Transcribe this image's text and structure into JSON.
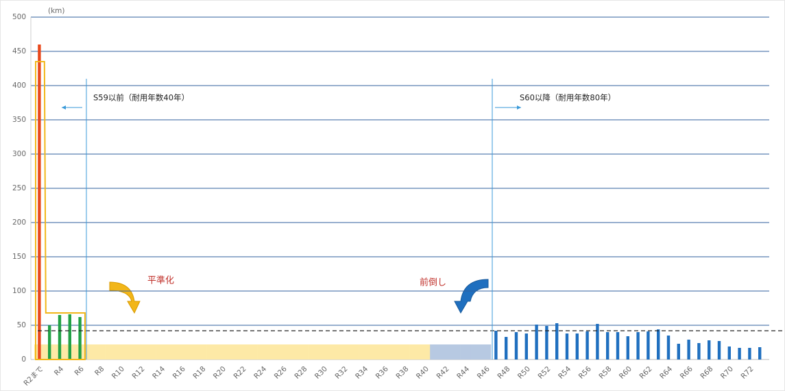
{
  "chart_data": {
    "type": "bar",
    "unit_label": "(km)",
    "categories": [
      "R2まで",
      null,
      "R4",
      null,
      "R6",
      null,
      "R8",
      null,
      "R10",
      null,
      "R12",
      null,
      "R14",
      null,
      "R16",
      null,
      "R18",
      null,
      "R20",
      null,
      "R22",
      null,
      "R24",
      null,
      "R26",
      null,
      "R28",
      null,
      "R30",
      null,
      "R32",
      null,
      "R34",
      null,
      "R36",
      null,
      "R38",
      null,
      "R40",
      null,
      "R42",
      null,
      "R44",
      null,
      "R46",
      null,
      "R48",
      null,
      "R50",
      null,
      "R52",
      null,
      "R54",
      null,
      "R56",
      null,
      "R58",
      null,
      "R60",
      null,
      "R62",
      null,
      "R64",
      null,
      "R66",
      null,
      "R68",
      null,
      "R70",
      null,
      "R72",
      null
    ],
    "series": [
      {
        "style": "band",
        "color": "#fde9a6",
        "values": [
          22,
          22,
          22,
          22,
          22,
          22,
          22,
          22,
          22,
          22,
          22,
          22,
          22,
          22,
          22,
          22,
          22,
          22,
          22,
          22,
          22,
          22,
          22,
          22,
          22,
          22,
          22,
          22,
          22,
          22,
          22,
          22,
          22,
          22,
          22,
          22,
          22,
          22,
          22,
          null,
          null,
          null,
          null,
          null,
          null,
          null,
          null,
          null,
          null,
          null,
          null,
          null,
          null,
          null,
          null,
          null,
          null,
          null,
          null,
          null,
          null,
          null,
          null,
          null,
          null,
          null,
          null,
          null,
          null,
          null,
          null,
          null
        ]
      },
      {
        "style": "band",
        "color": "#b7c9e2",
        "values": [
          null,
          null,
          null,
          null,
          null,
          null,
          null,
          null,
          null,
          null,
          null,
          null,
          null,
          null,
          null,
          null,
          null,
          null,
          null,
          null,
          null,
          null,
          null,
          null,
          null,
          null,
          null,
          null,
          null,
          null,
          null,
          null,
          null,
          null,
          null,
          null,
          null,
          null,
          null,
          22,
          22,
          22,
          22,
          22,
          22,
          null,
          null,
          null,
          null,
          null,
          null,
          null,
          null,
          null,
          null,
          null,
          null,
          null,
          null,
          null,
          null,
          null,
          null,
          null,
          null,
          null,
          null,
          null,
          null,
          null,
          null,
          null
        ]
      },
      {
        "style": "bar",
        "color": "#e8481c",
        "values": [
          460,
          null,
          null,
          null,
          null,
          null,
          null,
          null,
          null,
          null,
          null,
          null,
          null,
          null,
          null,
          null,
          null,
          null,
          null,
          null,
          null,
          null,
          null,
          null,
          null,
          null,
          null,
          null,
          null,
          null,
          null,
          null,
          null,
          null,
          null,
          null,
          null,
          null,
          null,
          null,
          null,
          null,
          null,
          null,
          null,
          null,
          null,
          null,
          null,
          null,
          null,
          null,
          null,
          null,
          null,
          null,
          null,
          null,
          null,
          null,
          null,
          null,
          null,
          null,
          null,
          null,
          null,
          null,
          null,
          null,
          null,
          null
        ]
      },
      {
        "style": "bar",
        "color": "#22a045",
        "values": [
          null,
          50,
          65,
          66,
          62,
          null,
          null,
          null,
          null,
          null,
          null,
          null,
          null,
          null,
          null,
          null,
          null,
          null,
          null,
          null,
          null,
          null,
          null,
          null,
          null,
          null,
          null,
          null,
          null,
          null,
          null,
          null,
          null,
          null,
          null,
          null,
          null,
          null,
          null,
          null,
          null,
          null,
          null,
          null,
          null,
          null,
          null,
          null,
          null,
          null,
          null,
          null,
          null,
          null,
          null,
          null,
          null,
          null,
          null,
          null,
          null,
          null,
          null,
          null,
          null,
          null,
          null,
          null,
          null,
          null,
          null,
          null
        ]
      },
      {
        "style": "bar",
        "color": "#1f6fbf",
        "values": [
          null,
          null,
          null,
          null,
          null,
          null,
          null,
          null,
          null,
          null,
          null,
          null,
          null,
          null,
          null,
          null,
          null,
          null,
          null,
          null,
          null,
          null,
          null,
          null,
          null,
          null,
          null,
          null,
          null,
          null,
          null,
          null,
          null,
          null,
          null,
          null,
          null,
          null,
          null,
          null,
          null,
          null,
          null,
          null,
          null,
          42,
          33,
          40,
          38,
          51,
          49,
          53,
          38,
          38,
          41,
          52,
          40,
          40,
          34,
          40,
          41,
          44,
          35,
          23,
          29,
          24,
          28,
          27,
          19,
          17,
          17,
          18
        ]
      },
      {
        "style": "outline",
        "color": "#f2b619",
        "values": [
          435,
          68,
          68,
          68,
          68,
          null,
          null,
          null,
          null,
          null,
          null,
          null,
          null,
          null,
          null,
          null,
          null,
          null,
          null,
          null,
          null,
          null,
          null,
          null,
          null,
          null,
          null,
          null,
          null,
          null,
          null,
          null,
          null,
          null,
          null,
          null,
          null,
          null,
          null,
          null,
          null,
          null,
          null,
          null,
          null,
          null,
          null,
          null,
          null,
          null,
          null,
          null,
          null,
          null,
          null,
          null,
          null,
          null,
          null,
          null,
          null,
          null,
          null,
          null,
          null,
          null,
          null,
          null,
          null,
          null,
          null,
          null
        ]
      }
    ],
    "reference_line": 42,
    "dividers": [
      {
        "after": 4,
        "text": "S59以前（耐用年数40年）",
        "direction": "left"
      },
      {
        "after": 44,
        "text": "S60以降（耐用年数80年）",
        "direction": "right"
      }
    ],
    "callouts": [
      "平準化",
      "前倒し"
    ],
    "ylim": [
      0,
      500
    ],
    "yticks": [
      0,
      50,
      100,
      150,
      200,
      250,
      300,
      350,
      400,
      450,
      500
    ],
    "grid": true
  }
}
